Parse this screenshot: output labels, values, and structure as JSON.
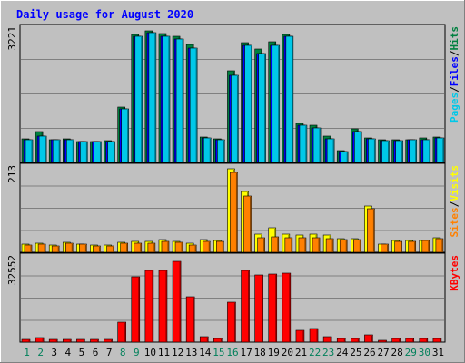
{
  "chart_data": {
    "type": "bar",
    "title": "Daily usage for August 2020",
    "categories": [
      "1",
      "2",
      "3",
      "4",
      "5",
      "6",
      "7",
      "8",
      "9",
      "10",
      "11",
      "12",
      "13",
      "14",
      "15",
      "16",
      "17",
      "18",
      "19",
      "20",
      "21",
      "22",
      "23",
      "24",
      "25",
      "26",
      "27",
      "28",
      "29",
      "30",
      "31"
    ],
    "weekend_days": [
      "1",
      "2",
      "8",
      "9",
      "15",
      "16",
      "22",
      "23",
      "29",
      "30"
    ],
    "panels": [
      {
        "id": "pages-files-hits",
        "ymax_label": "3221",
        "ymax": 3221,
        "legend": [
          {
            "text": "Pages",
            "color": "#00c8e8"
          },
          {
            "text": "/",
            "color": "#000000"
          },
          {
            "text": "Files",
            "color": "#0000ff"
          },
          {
            "text": "/",
            "color": "#000000"
          },
          {
            "text": "Hits",
            "color": "#008040"
          }
        ],
        "series": [
          {
            "name": "Hits",
            "color": "#008040",
            "values": [
              570,
              730,
              550,
              560,
              500,
              500,
              510,
              1320,
              3040,
              3140,
              3070,
              3000,
              2810,
              610,
              560,
              2190,
              2850,
              2700,
              2880,
              3040,
              940,
              880,
              620,
              290,
              790,
              590,
              530,
              540,
              550,
              580,
              600
            ]
          },
          {
            "name": "Files",
            "color": "#0000ff",
            "values": [
              550,
              620,
              540,
              550,
              500,
              490,
              500,
              1270,
              3000,
              3100,
              3000,
              2930,
              2730,
              590,
              540,
              2080,
              2790,
              2590,
              2790,
              3000,
              880,
              820,
              560,
              260,
              740,
              560,
              510,
              510,
              530,
              550,
              580
            ]
          },
          {
            "name": "Pages",
            "color": "#00c8e8",
            "values": [
              550,
              620,
              540,
              550,
              500,
              490,
              500,
              1270,
              3000,
              3100,
              3000,
              2930,
              2730,
              590,
              540,
              2080,
              2790,
              2590,
              2790,
              3000,
              880,
              820,
              560,
              260,
              740,
              560,
              510,
              510,
              530,
              550,
              580
            ]
          }
        ]
      },
      {
        "id": "visits-sites",
        "ymax_label": "213",
        "ymax": 213,
        "legend": [
          {
            "text": "Sites",
            "color": "#ff8000"
          },
          {
            "text": "/",
            "color": "#000000"
          },
          {
            "text": "Visits",
            "color": "#ffff00"
          }
        ],
        "series": [
          {
            "name": "Visits",
            "color": "#ffff00",
            "values": [
              20,
              22,
              18,
              24,
              20,
              18,
              18,
              25,
              26,
              26,
              32,
              26,
              22,
              32,
              30,
              206,
              151,
              44,
              61,
              44,
              43,
              44,
              42,
              33,
              33,
              115,
              20,
              30,
              30,
              30,
              35
            ]
          },
          {
            "name": "Sites",
            "color": "#ff8000",
            "values": [
              18,
              20,
              16,
              22,
              20,
              15,
              16,
              22,
              23,
              23,
              26,
              24,
              18,
              26,
              27,
              198,
              140,
              35,
              38,
              35,
              35,
              36,
              33,
              31,
              31,
              108,
              20,
              26,
              27,
              30,
              33
            ]
          }
        ]
      },
      {
        "id": "kbytes",
        "ymax_label": "32552",
        "ymax": 32552,
        "legend": [
          {
            "text": "KBytes",
            "color": "#ff0000"
          }
        ],
        "series": [
          {
            "name": "KBytes",
            "color": "#ff0000",
            "values": [
              900,
              1800,
              900,
              900,
              900,
              900,
              900,
              7400,
              24700,
              27000,
              27000,
              30500,
              17000,
              2100,
              1200,
              15000,
              27000,
              25300,
              25700,
              26200,
              4600,
              5300,
              2100,
              1200,
              1200,
              2600,
              700,
              1200,
              1200,
              1200,
              1400
            ]
          }
        ]
      }
    ]
  }
}
